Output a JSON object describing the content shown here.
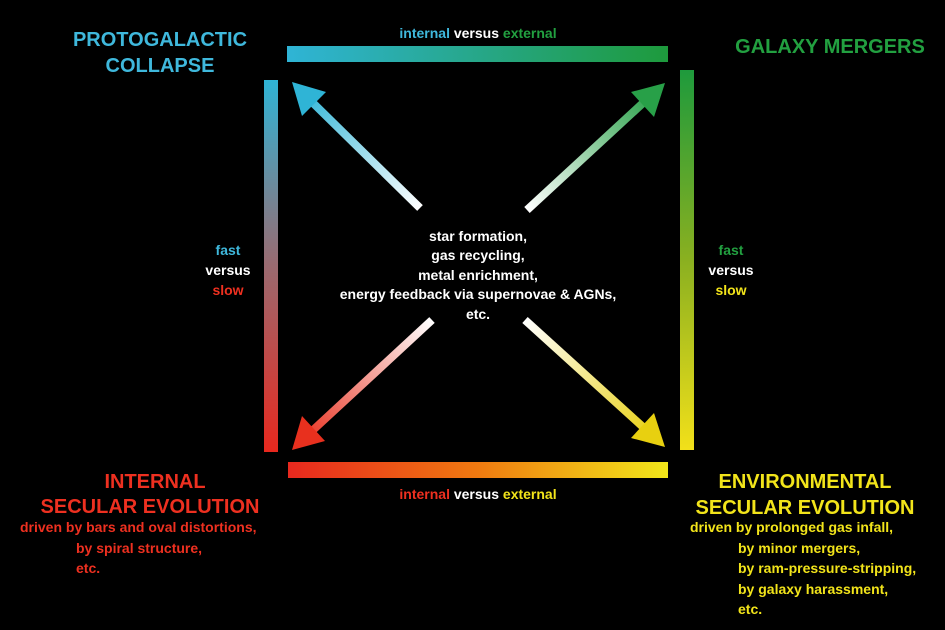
{
  "corners": {
    "top_left": {
      "title": [
        "PROTOGALACTIC",
        "COLLAPSE"
      ]
    },
    "top_right": {
      "title": [
        "GALAXY MERGERS"
      ]
    },
    "bottom_left": {
      "title": [
        "INTERNAL",
        "SECULAR EVOLUTION"
      ],
      "details": [
        "driven by bars and oval distortions,",
        "by spiral structure,",
        "etc."
      ]
    },
    "bottom_right": {
      "title": [
        "ENVIRONMENTAL",
        "SECULAR EVOLUTION"
      ],
      "details": [
        "driven by prolonged gas infall,",
        "by minor mergers,",
        "by ram-pressure-stripping,",
        "by galaxy harassment,",
        "etc."
      ]
    }
  },
  "edges": {
    "top": [
      "internal",
      "versus",
      "external"
    ],
    "bottom": [
      "internal",
      "versus",
      "external"
    ],
    "left": [
      "fast",
      "versus",
      "slow"
    ],
    "right": [
      "fast",
      "versus",
      "slow"
    ]
  },
  "center": [
    "star formation,",
    "gas recycling,",
    "metal enrichment,",
    "energy feedback via supernovae & AGNs,",
    "etc."
  ]
}
